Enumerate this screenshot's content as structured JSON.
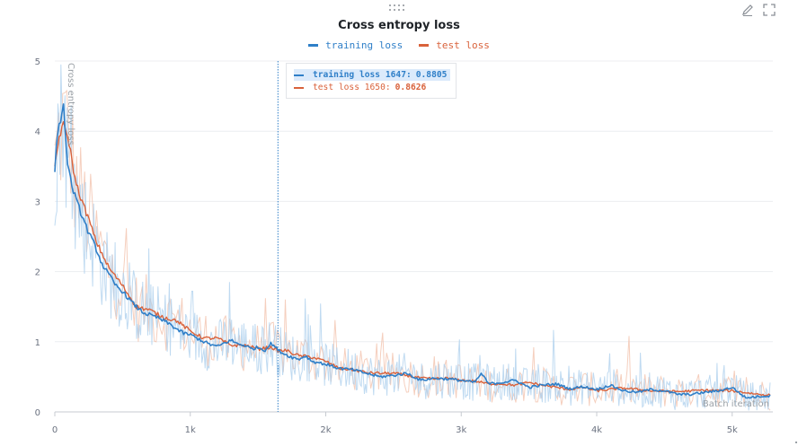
{
  "panel": {
    "drag_icon": "drag-handle-icon",
    "edit_icon": "pencil-icon",
    "fullscreen_icon": "expand-icon"
  },
  "chart_data": {
    "type": "line",
    "title": "Cross entropy loss",
    "xlabel": "Batch iteration",
    "ylabel": "Cross entropy loss",
    "xlim": [
      0,
      5300
    ],
    "ylim": [
      0,
      5
    ],
    "xticks": [
      0,
      1000,
      2000,
      3000,
      4000,
      5000
    ],
    "xtick_labels": [
      "0",
      "1k",
      "2k",
      "3k",
      "4k",
      "5k"
    ],
    "yticks": [
      0,
      1,
      2,
      3,
      4,
      5
    ],
    "ytick_labels": [
      "0",
      "1",
      "2",
      "3",
      "4",
      "5"
    ],
    "grid": true,
    "legend_position": "top-center",
    "series": [
      {
        "name": "training loss",
        "color": "#2f7fc8",
        "raw_color": "#a9cdec",
        "x": [
          0,
          20,
          40,
          60,
          80,
          100,
          130,
          160,
          200,
          250,
          300,
          350,
          400,
          450,
          500,
          550,
          600,
          650,
          700,
          750,
          800,
          850,
          900,
          950,
          1000,
          1050,
          1100,
          1150,
          1200,
          1250,
          1300,
          1350,
          1400,
          1450,
          1500,
          1550,
          1600,
          1647,
          1700,
          1750,
          1800,
          1850,
          1900,
          1950,
          2000,
          2100,
          2200,
          2300,
          2400,
          2500,
          2600,
          2700,
          2800,
          2900,
          3000,
          3100,
          3150,
          3200,
          3300,
          3400,
          3500,
          3600,
          3700,
          3800,
          3900,
          4000,
          4100,
          4200,
          4300,
          4400,
          4500,
          4600,
          4700,
          4800,
          4900,
          5000,
          5100,
          5200,
          5280
        ],
        "y": [
          3.45,
          4.0,
          4.1,
          4.45,
          3.9,
          3.45,
          3.2,
          3.0,
          2.8,
          2.55,
          2.35,
          2.1,
          1.95,
          1.8,
          1.72,
          1.6,
          1.5,
          1.42,
          1.38,
          1.35,
          1.3,
          1.25,
          1.18,
          1.12,
          1.1,
          1.05,
          1.0,
          0.96,
          0.93,
          0.98,
          1.02,
          0.97,
          0.95,
          0.9,
          0.92,
          0.88,
          0.98,
          0.8805,
          0.82,
          0.78,
          0.75,
          0.8,
          0.72,
          0.7,
          0.68,
          0.62,
          0.6,
          0.55,
          0.5,
          0.52,
          0.55,
          0.45,
          0.48,
          0.47,
          0.45,
          0.42,
          0.55,
          0.4,
          0.42,
          0.45,
          0.35,
          0.38,
          0.4,
          0.33,
          0.36,
          0.32,
          0.38,
          0.3,
          0.28,
          0.32,
          0.3,
          0.25,
          0.25,
          0.28,
          0.3,
          0.35,
          0.2,
          0.22,
          0.23
        ]
      },
      {
        "name": "test loss",
        "color": "#d9623b",
        "raw_color": "#f2bfa8",
        "x": [
          0,
          30,
          60,
          100,
          150,
          200,
          250,
          300,
          400,
          500,
          600,
          700,
          800,
          900,
          1000,
          1100,
          1200,
          1300,
          1400,
          1500,
          1600,
          1650,
          1700,
          1800,
          1900,
          2000,
          2100,
          2200,
          2300,
          2400,
          2500,
          2600,
          2700,
          2800,
          2900,
          3000,
          3100,
          3200,
          3300,
          3400,
          3500,
          3600,
          3700,
          3800,
          3900,
          4000,
          4200,
          4400,
          4600,
          4800,
          5000,
          5200,
          5280
        ],
        "y": [
          3.5,
          3.9,
          4.1,
          3.9,
          3.3,
          3.0,
          2.75,
          2.45,
          2.05,
          1.8,
          1.5,
          1.45,
          1.35,
          1.3,
          1.15,
          1.05,
          1.05,
          0.95,
          0.95,
          0.9,
          0.92,
          0.8626,
          0.88,
          0.8,
          0.78,
          0.72,
          0.62,
          0.6,
          0.56,
          0.55,
          0.55,
          0.52,
          0.48,
          0.47,
          0.48,
          0.45,
          0.44,
          0.4,
          0.4,
          0.38,
          0.42,
          0.38,
          0.35,
          0.32,
          0.35,
          0.3,
          0.34,
          0.3,
          0.29,
          0.31,
          0.3,
          0.25,
          0.24
        ]
      }
    ],
    "hover": {
      "x": 1647,
      "entries": [
        {
          "label": "training loss 1647:",
          "value": "0.8805"
        },
        {
          "label": "test loss 1650:",
          "value": "0.8626"
        }
      ]
    }
  }
}
